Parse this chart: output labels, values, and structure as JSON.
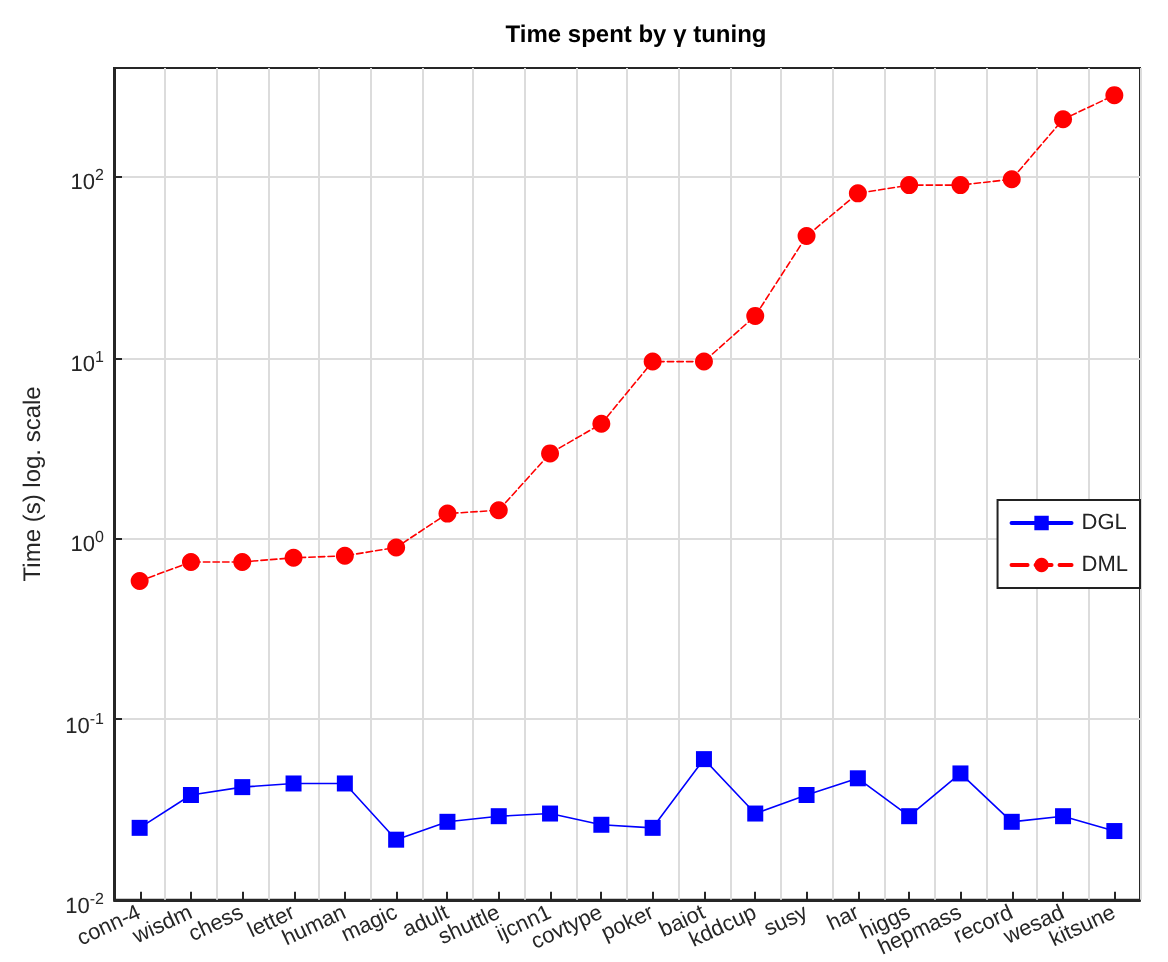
{
  "chart_data": {
    "type": "line",
    "title": "Time spent by γ tuning",
    "ylabel": "Time (s) log. scale",
    "categories": [
      "conn-4",
      "wisdm",
      "chess",
      "letter",
      "human",
      "magic",
      "adult",
      "shuttle",
      "ijcnn1",
      "covtype",
      "poker",
      "baiot",
      "kddcup",
      "susy",
      "har",
      "higgs",
      "hepmass",
      "record",
      "wesad",
      "kitsune"
    ],
    "series": [
      {
        "name": "DGL",
        "color": "#0000ff",
        "marker": "square",
        "line_style": "solid",
        "values": [
          0.025,
          0.038,
          0.042,
          0.044,
          0.044,
          0.0215,
          0.027,
          0.029,
          0.03,
          0.026,
          0.025,
          0.06,
          0.03,
          0.038,
          0.047,
          0.029,
          0.05,
          0.027,
          0.029,
          0.024
        ]
      },
      {
        "name": "DML",
        "color": "#ff0000",
        "marker": "circle",
        "line_style": "dashed",
        "values": [
          0.58,
          0.74,
          0.74,
          0.78,
          0.8,
          0.89,
          1.37,
          1.43,
          2.95,
          4.3,
          9.5,
          9.5,
          17,
          47,
          81,
          90,
          90,
          97,
          208,
          283
        ]
      }
    ],
    "log": "y",
    "ylim": [
      0.01,
      400
    ],
    "yticks": [
      {
        "value": 0.01,
        "label": "10$^{-2}$"
      },
      {
        "value": 0.1,
        "label": "10$^{-1}$"
      },
      {
        "value": 1,
        "label": "10$^{0}$"
      },
      {
        "value": 10,
        "label": "10$^{1}$"
      },
      {
        "value": 100,
        "label": "10$^{2}$"
      }
    ],
    "grid": true,
    "legend": "right"
  }
}
